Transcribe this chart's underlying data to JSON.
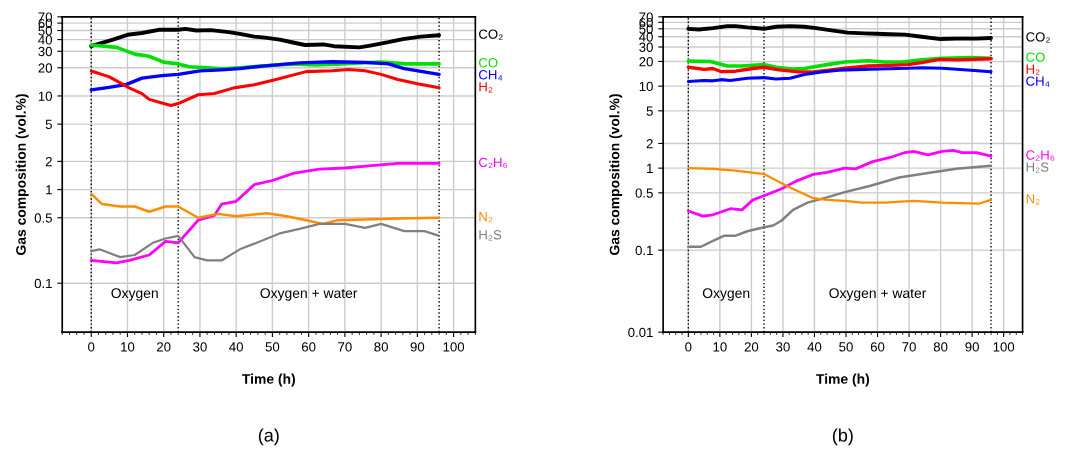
{
  "chart_data": [
    {
      "type": "line",
      "xlabel": "Time (h)",
      "ylabel": "Gas composition (vol.%)",
      "log": "y",
      "grid": true,
      "legend": false,
      "line_style": "solid",
      "marker": "none",
      "xlim": [
        -8,
        106
      ],
      "xticks": [
        0,
        10,
        20,
        30,
        40,
        50,
        60,
        70,
        80,
        90,
        100
      ],
      "ylim": [
        0.03,
        70
      ],
      "yticks": [
        0.1,
        0.5,
        1,
        2,
        5,
        10,
        20,
        30,
        40,
        50,
        60,
        70
      ],
      "ref_lines": [
        {
          "axis": "x",
          "value": 0,
          "label": null,
          "color": "#000000",
          "line_style": "dotted"
        },
        {
          "axis": "x",
          "value": 24,
          "label": null,
          "color": "#000000",
          "line_style": "dotted"
        },
        {
          "axis": "x",
          "value": 96,
          "label": null,
          "color": "#000000",
          "line_style": "dotted"
        }
      ],
      "annotations": [
        "Oxygen",
        "Oxygen + water",
        "(a)"
      ],
      "series": [
        {
          "name": "CO₂",
          "color": "#000000",
          "x": [
            0,
            3,
            6,
            10,
            14,
            19,
            24,
            26,
            29,
            33,
            38,
            41,
            45,
            48,
            52,
            56,
            59,
            64,
            67,
            74,
            77,
            82,
            86,
            91,
            96
          ],
          "values": [
            34,
            37,
            40,
            45,
            47,
            51,
            51,
            52,
            50,
            50.5,
            48,
            46,
            43,
            42,
            40,
            37,
            35,
            35.5,
            34,
            33,
            34.5,
            37.5,
            40.5,
            43,
            44.5
          ]
        },
        {
          "name": "CO",
          "color": "#00e000",
          "x": [
            0,
            7,
            12,
            16,
            20,
            24,
            27,
            32,
            36,
            41,
            48,
            56,
            62,
            69,
            74,
            80,
            87,
            96
          ],
          "values": [
            35,
            33,
            28,
            26.5,
            23,
            22,
            20.5,
            20,
            19.5,
            20,
            21,
            22,
            21.5,
            22,
            22.5,
            23,
            22,
            22
          ]
        },
        {
          "name": "CH₄",
          "color": "#0000ff",
          "x": [
            0,
            4,
            9.6,
            14,
            19.5,
            24,
            30,
            36,
            41,
            48,
            57.5,
            66.5,
            75.6,
            82,
            86.4,
            91,
            96
          ],
          "values": [
            11.6,
            12.2,
            13.2,
            15.5,
            16.5,
            17,
            18.5,
            19,
            19.6,
            21,
            22.6,
            23.2,
            22.8,
            22,
            19.6,
            18.3,
            17
          ]
        },
        {
          "name": "H₂",
          "color": "#ff0000",
          "x": [
            0,
            5,
            10.5,
            14,
            16,
            19.5,
            22,
            24,
            29.5,
            34,
            39.4,
            45,
            51,
            59.3,
            66.5,
            71,
            75.6,
            80,
            84.6,
            90,
            96
          ],
          "values": [
            18.5,
            16,
            12.2,
            10.6,
            9.2,
            8.4,
            7.9,
            8.3,
            10.3,
            10.6,
            12.2,
            13.2,
            15,
            18.2,
            18.6,
            19.2,
            18.6,
            17,
            15,
            13.5,
            12.2
          ]
        },
        {
          "name": "C₂H₆",
          "color": "#ff00ff",
          "x": [
            0,
            7,
            10.5,
            16,
            20.5,
            24,
            29.5,
            34,
            36,
            40,
            45,
            50,
            56,
            63,
            70,
            77.4,
            84.6,
            96
          ],
          "values": [
            0.175,
            0.165,
            0.175,
            0.2,
            0.28,
            0.27,
            0.47,
            0.53,
            0.7,
            0.75,
            1.13,
            1.25,
            1.5,
            1.65,
            1.7,
            1.8,
            1.9,
            1.9
          ]
        },
        {
          "name": "N₂",
          "color": "#ff8c00",
          "x": [
            0,
            3,
            8,
            12,
            16,
            20.5,
            24,
            29.5,
            35,
            40,
            48.5,
            54,
            59.3,
            64,
            68,
            75.6,
            84.6,
            96
          ],
          "values": [
            0.9,
            0.7,
            0.66,
            0.66,
            0.58,
            0.66,
            0.66,
            0.5,
            0.55,
            0.52,
            0.56,
            0.52,
            0.47,
            0.43,
            0.47,
            0.48,
            0.49,
            0.5
          ]
        },
        {
          "name": "H₂S",
          "color": "#808080",
          "x": [
            0,
            2.3,
            8,
            12,
            17,
            20.5,
            24,
            28.5,
            32,
            36,
            41,
            46.7,
            52,
            57.5,
            63,
            70,
            75.6,
            80,
            86.4,
            92,
            96
          ],
          "values": [
            0.22,
            0.23,
            0.19,
            0.2,
            0.27,
            0.3,
            0.32,
            0.19,
            0.175,
            0.175,
            0.23,
            0.28,
            0.34,
            0.38,
            0.43,
            0.43,
            0.39,
            0.43,
            0.36,
            0.36,
            0.32
          ]
        }
      ]
    },
    {
      "type": "line",
      "xlabel": "Time (h)",
      "ylabel": "Gas composition (vol.%)",
      "log": "y",
      "grid": true,
      "legend": false,
      "line_style": "solid",
      "marker": "none",
      "xlim": [
        -8,
        106
      ],
      "xticks": [
        0,
        10,
        20,
        30,
        40,
        50,
        60,
        70,
        80,
        90,
        100
      ],
      "ylim": [
        0.01,
        70
      ],
      "yticks": [
        0.01,
        0.1,
        0.5,
        1,
        2,
        5,
        10,
        20,
        30,
        40,
        50,
        60,
        70
      ],
      "ref_lines": [
        {
          "axis": "x",
          "value": 0,
          "label": null,
          "color": "#000000",
          "line_style": "dotted"
        },
        {
          "axis": "x",
          "value": 24,
          "label": null,
          "color": "#000000",
          "line_style": "dotted"
        },
        {
          "axis": "x",
          "value": 96,
          "label": null,
          "color": "#000000",
          "line_style": "dotted"
        }
      ],
      "annotations": [
        "Oxygen",
        "Oxygen + water",
        "(b)"
      ],
      "series": [
        {
          "name": "CO₂",
          "color": "#000000",
          "x": [
            0,
            3.3,
            7.8,
            12.4,
            15,
            18.7,
            24,
            27.8,
            32.3,
            36.8,
            40.5,
            46,
            50.5,
            56,
            59.6,
            64,
            68.7,
            74,
            80,
            85,
            91.4,
            96
          ],
          "values": [
            50,
            49,
            51,
            54,
            54,
            52,
            50,
            53,
            54,
            53,
            51,
            47.5,
            45,
            44,
            43.5,
            43,
            42.5,
            40,
            37.5,
            38,
            38,
            38.6
          ]
        },
        {
          "name": "CO",
          "color": "#00e000",
          "x": [
            0,
            7,
            12.4,
            17,
            24,
            27.8,
            33,
            36.8,
            44,
            49.6,
            57,
            62,
            67.8,
            74,
            80.5,
            89.6,
            96
          ],
          "values": [
            20.2,
            20,
            17.6,
            17.6,
            18.3,
            17,
            16.2,
            16.4,
            18.3,
            19.7,
            20.4,
            19.7,
            19.7,
            20.9,
            21.9,
            22.3,
            21.9
          ]
        },
        {
          "name": "H₂",
          "color": "#ff0000",
          "x": [
            0,
            5,
            7.8,
            10.5,
            15,
            20.5,
            24,
            28.7,
            35,
            39.6,
            44,
            49.6,
            57,
            64,
            69.6,
            74,
            79.6,
            85,
            96
          ],
          "values": [
            17,
            16,
            16.4,
            15,
            15.2,
            16.4,
            17,
            15.8,
            14.9,
            14.9,
            15.6,
            16.6,
            17.6,
            17.9,
            18.3,
            19.4,
            21.2,
            20.9,
            21.6
          ]
        },
        {
          "name": "CH₄",
          "color": "#0000ff",
          "x": [
            0,
            5,
            7.8,
            10.5,
            13.3,
            18.7,
            24,
            27.8,
            32.3,
            36.8,
            42.3,
            47.7,
            53,
            60.5,
            69.6,
            74,
            80.5,
            89.6,
            96
          ],
          "values": [
            11.4,
            11.7,
            11.6,
            12,
            11.7,
            12.5,
            12.7,
            12.2,
            12.5,
            13.9,
            14.9,
            15.6,
            15.9,
            16.2,
            16.5,
            16.8,
            16.5,
            15.6,
            15
          ]
        },
        {
          "name": "C₂H₆",
          "color": "#ff00ff",
          "x": [
            0,
            4.6,
            7.8,
            13.3,
            17,
            20.5,
            24,
            29.6,
            34,
            39.6,
            44,
            49.6,
            53,
            58.5,
            64,
            68.7,
            71.4,
            76,
            80.5,
            84,
            86.8,
            91.4,
            96
          ],
          "values": [
            0.3,
            0.26,
            0.27,
            0.32,
            0.31,
            0.41,
            0.46,
            0.56,
            0.69,
            0.84,
            0.89,
            1.0,
            0.98,
            1.2,
            1.35,
            1.55,
            1.6,
            1.45,
            1.6,
            1.65,
            1.55,
            1.55,
            1.4
          ]
        },
        {
          "name": "H₂S",
          "color": "#808080",
          "x": [
            0,
            4,
            7.8,
            11.4,
            15,
            18.7,
            24,
            26.9,
            29.6,
            33.2,
            37.8,
            44,
            49.6,
            57.8,
            66.8,
            76,
            85,
            96
          ],
          "values": [
            0.11,
            0.11,
            0.13,
            0.15,
            0.15,
            0.17,
            0.19,
            0.2,
            0.23,
            0.31,
            0.38,
            0.44,
            0.51,
            0.61,
            0.77,
            0.87,
            0.98,
            1.07
          ]
        },
        {
          "name": "N₂",
          "color": "#ff8c00",
          "x": [
            0,
            7.8,
            15,
            21.4,
            24,
            27.8,
            31.4,
            35,
            39.6,
            44,
            49.6,
            55,
            62.3,
            71.4,
            80.5,
            92.3,
            96
          ],
          "values": [
            1.0,
            0.98,
            0.93,
            0.87,
            0.85,
            0.71,
            0.6,
            0.52,
            0.43,
            0.41,
            0.4,
            0.38,
            0.38,
            0.4,
            0.38,
            0.37,
            0.41
          ]
        }
      ]
    }
  ]
}
